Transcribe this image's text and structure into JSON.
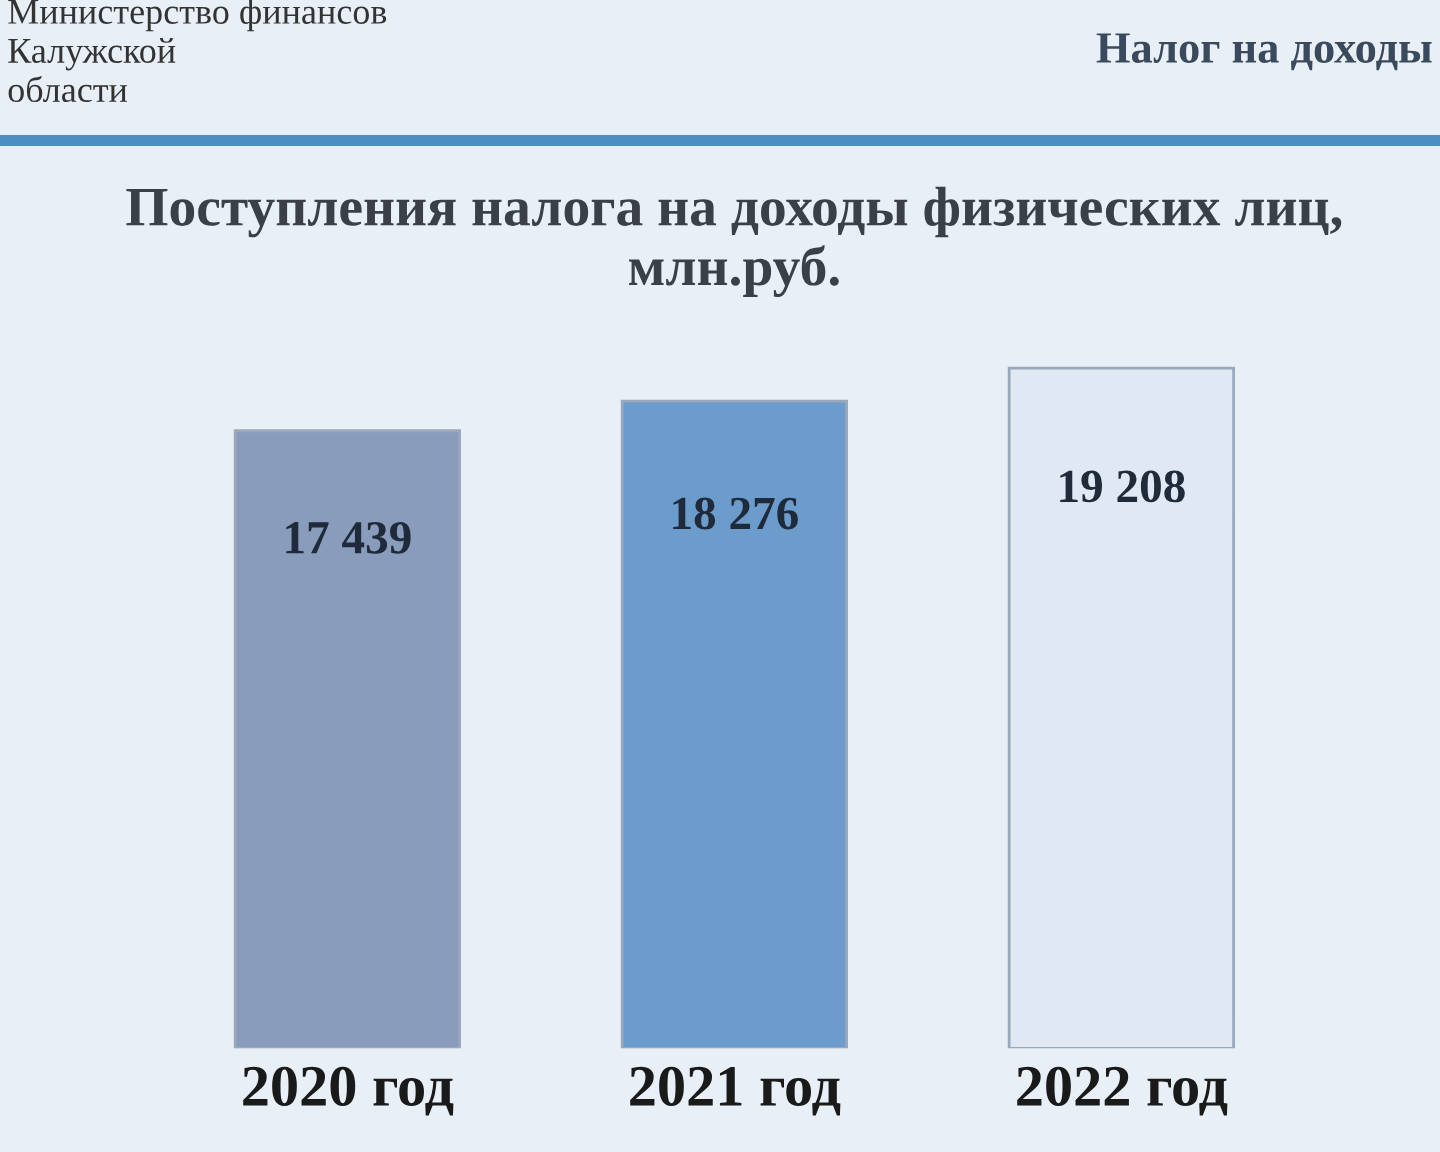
{
  "chart_data": {
    "type": "bar",
    "title": "Поступления налога на доходы физических лиц, млн.руб.",
    "annotations": [
      "Министерство финансов\nКалужской\nобласти",
      "Налог на доходы"
    ],
    "categories": [
      "2020 год",
      "2021 год",
      "2022 год"
    ],
    "values": [
      17439,
      18276,
      19208
    ],
    "value_labels": [
      "17 439",
      "18 276",
      "19 208"
    ],
    "colors": [
      "#8a9cbb",
      "#6c9ccb",
      "#dfe8f3"
    ],
    "grid": false,
    "legend": false
  }
}
